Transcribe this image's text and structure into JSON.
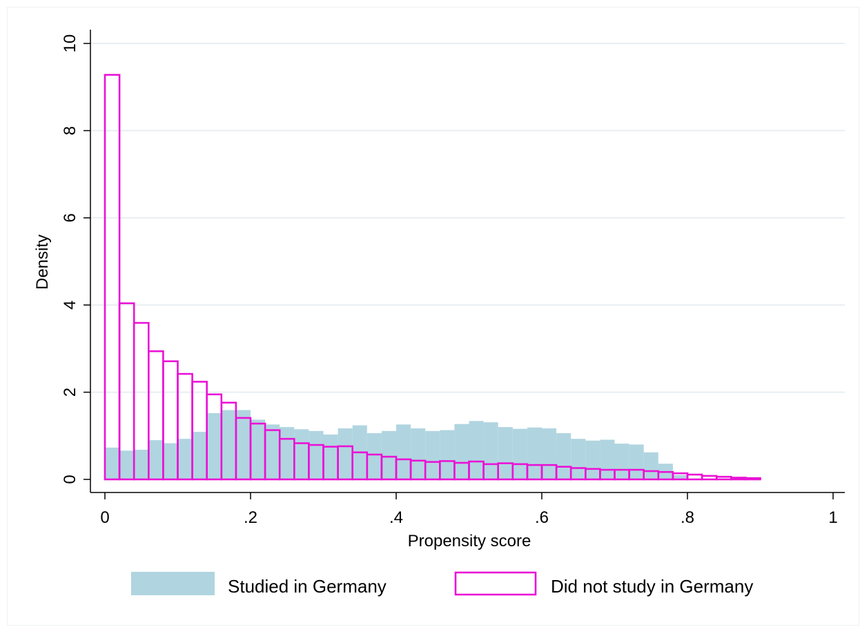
{
  "chart_data": {
    "type": "bar",
    "subtype": "overlaid-histogram",
    "xlabel": "Propensity score",
    "ylabel": "Density",
    "xlim": [
      0,
      1
    ],
    "ylim": [
      0,
      10
    ],
    "x_ticks": [
      0,
      0.2,
      0.4,
      0.6,
      0.8,
      1
    ],
    "x_tick_labels": [
      "0",
      ".2",
      ".4",
      ".6",
      ".8",
      "1"
    ],
    "y_ticks": [
      0,
      2,
      4,
      6,
      8,
      10
    ],
    "y_tick_labels": [
      "0",
      "2",
      "4",
      "6",
      "8",
      "10"
    ],
    "grid": "horizontal",
    "legend_position": "bottom",
    "bin_width": 0.02,
    "bin_starts": [
      0.0,
      0.02,
      0.04,
      0.06,
      0.08,
      0.1,
      0.12,
      0.14,
      0.16,
      0.18,
      0.2,
      0.22,
      0.24,
      0.26,
      0.28,
      0.3,
      0.32,
      0.34,
      0.36,
      0.38,
      0.4,
      0.42,
      0.44,
      0.46,
      0.48,
      0.5,
      0.52,
      0.54,
      0.56,
      0.58,
      0.6,
      0.62,
      0.64,
      0.66,
      0.68,
      0.7,
      0.72,
      0.74,
      0.76,
      0.78,
      0.8,
      0.82,
      0.84,
      0.86,
      0.88,
      0.9,
      0.92,
      0.94,
      0.96
    ],
    "series": [
      {
        "name": "Studied in Germany",
        "style": "filled",
        "color": "#b0d5e0",
        "values": [
          0.73,
          0.66,
          0.68,
          0.9,
          0.83,
          0.93,
          1.09,
          1.52,
          1.59,
          1.59,
          1.37,
          1.26,
          1.2,
          1.15,
          1.11,
          1.03,
          1.17,
          1.24,
          1.06,
          1.11,
          1.26,
          1.17,
          1.11,
          1.13,
          1.27,
          1.34,
          1.31,
          1.2,
          1.16,
          1.19,
          1.17,
          1.06,
          0.93,
          0.89,
          0.91,
          0.82,
          0.8,
          0.62,
          0.36,
          0.1
        ]
      },
      {
        "name": "Did not study in Germany",
        "style": "outline",
        "color": "#ea12d6",
        "values": [
          9.28,
          4.04,
          3.59,
          2.94,
          2.71,
          2.42,
          2.24,
          1.95,
          1.76,
          1.41,
          1.28,
          1.13,
          0.93,
          0.83,
          0.79,
          0.75,
          0.76,
          0.62,
          0.57,
          0.52,
          0.46,
          0.43,
          0.4,
          0.42,
          0.38,
          0.41,
          0.35,
          0.37,
          0.35,
          0.33,
          0.33,
          0.29,
          0.26,
          0.24,
          0.22,
          0.22,
          0.22,
          0.19,
          0.17,
          0.14,
          0.11,
          0.08,
          0.06,
          0.04,
          0.03
        ]
      }
    ]
  }
}
